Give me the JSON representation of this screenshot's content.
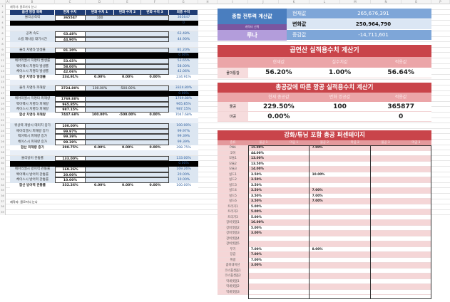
{
  "left_sheet": {
    "col_letters": [
      "A",
      "B",
      "C",
      "D",
      "E",
      "F",
      "G",
      "H"
    ],
    "title": "제작자: 클로저닉 눈나",
    "header": [
      "옵션 명칭 목록",
      "현재 수치",
      "변화 수치 1",
      "변화 수치 2",
      "변화 수치 3",
      "최종 수치"
    ],
    "rows": [
      {
        "n": 3,
        "t": "data",
        "c": [
          "물리공격력",
          "365547",
          "100",
          "",
          "",
          "365647"
        ]
      },
      {
        "n": 4,
        "t": "black",
        "c": [
          "",
          "",
          "",
          "",
          "",
          "0"
        ]
      },
      {
        "n": 5,
        "t": "blank"
      },
      {
        "n": 6,
        "t": "data",
        "c": [
          "공격 속도",
          "63.48%",
          "",
          "",
          "",
          "63.48%"
        ]
      },
      {
        "n": 7,
        "t": "data",
        "c": [
          "스킬 재사용 대기시간",
          "44.90%",
          "",
          "",
          "",
          "44.90%"
        ]
      },
      {
        "n": 8,
        "t": "blank"
      },
      {
        "n": 9,
        "t": "data",
        "c": [
          "물리 치명타 발생률",
          "81.20%",
          "",
          "",
          "",
          "81.20%"
        ]
      },
      {
        "n": 10,
        "t": "black",
        "c": [
          "",
          "",
          "",
          "",
          "",
          "0.00%"
        ]
      },
      {
        "n": 11,
        "t": "data",
        "c": [
          "에아리엘시 치명타 발생률",
          "53.65%",
          "",
          "",
          "",
          "53.65%"
        ]
      },
      {
        "n": 12,
        "t": "data",
        "c": [
          "백아펙시 치명타 발생률",
          "58.00%",
          "",
          "",
          "",
          "58.00%"
        ]
      },
      {
        "n": 13,
        "t": "data",
        "c": [
          "체이스시 치명타 발생률",
          "42.06%",
          "",
          "",
          "",
          "42.06%"
        ]
      },
      {
        "n": 14,
        "t": "sum",
        "c": [
          "합산 치명타 발생률",
          "234.91%",
          "0.00%",
          "0.00%",
          "0.00%",
          "234.91%"
        ]
      },
      {
        "n": 15,
        "t": "blank"
      },
      {
        "n": 16,
        "t": "data",
        "c": [
          "물리 치명타 피해량",
          "3724.80%",
          "100.00%",
          "-500.00%",
          "",
          "3324.80%"
        ]
      },
      {
        "n": 17,
        "t": "black",
        "c": [
          "",
          "",
          "",
          "",
          "",
          "0.00%"
        ]
      },
      {
        "n": 18,
        "t": "data",
        "c": [
          "에아리엘시 치명타 피해량",
          "1769.88%",
          "",
          "",
          "",
          "1769.88%"
        ]
      },
      {
        "n": 19,
        "t": "data",
        "c": [
          "백아펙시 치명타 피해량",
          "965.85%",
          "",
          "",
          "",
          "965.85%"
        ]
      },
      {
        "n": 20,
        "t": "data",
        "c": [
          "체이스시 치명타 피해량",
          "987.15%",
          "",
          "",
          "",
          "987.15%"
        ]
      },
      {
        "n": 21,
        "t": "sum",
        "c": [
          "합산 치명타 피해량",
          "7447.68%",
          "100.00%",
          "-500.00%",
          "0.00%",
          "7047.68%"
        ]
      },
      {
        "n": 22,
        "t": "blank"
      },
      {
        "n": 23,
        "t": "data",
        "c": [
          "위상력 개방시 데미지 증가",
          "100.00%",
          "",
          "",
          "",
          "100.00%"
        ]
      },
      {
        "n": 24,
        "t": "data",
        "c": [
          "에아리엘시 피해량 증가",
          "99.97%",
          "",
          "",
          "",
          "99.97%"
        ]
      },
      {
        "n": 25,
        "t": "data",
        "c": [
          "백아펙시 피해량 증가",
          "99.39%",
          "",
          "",
          "",
          "99.39%"
        ]
      },
      {
        "n": 26,
        "t": "data",
        "c": [
          "체이스시 피해량 증가",
          "99.39%",
          "",
          "",
          "",
          "99.39%"
        ]
      },
      {
        "n": 27,
        "t": "sum",
        "c": [
          "합산 피해량 증가",
          "398.75%",
          "0.00%",
          "0.00%",
          "0.00%",
          "398.75%"
        ]
      },
      {
        "n": 28,
        "t": "blank"
      },
      {
        "n": 29,
        "t": "data",
        "c": [
          "물리방어 관통률",
          "133.00%",
          "",
          "",
          "",
          "133.00%"
        ]
      },
      {
        "n": 30,
        "t": "black",
        "c": [
          "",
          "",
          "",
          "",
          "",
          "0.00%"
        ]
      },
      {
        "n": 31,
        "t": "data",
        "c": [
          "에아리엘시 방어력 관통률",
          "169.26%",
          "",
          "",
          "",
          "169.26%"
        ]
      },
      {
        "n": 32,
        "t": "data",
        "c": [
          "백아펙시 방어력 관통률",
          "20.00%",
          "",
          "",
          "",
          "20.00%"
        ]
      },
      {
        "n": 33,
        "t": "data",
        "c": [
          "체이스시 방어력 관통률",
          "10.00%",
          "",
          "",
          "",
          "10.00%"
        ]
      },
      {
        "n": 34,
        "t": "sum",
        "c": [
          "합산 방어력 관통률",
          "332.26%",
          "0.00%",
          "0.00%",
          "0.00%",
          "100.00%"
        ]
      },
      {
        "n": 35,
        "t": "blank"
      },
      {
        "n": 36,
        "t": "blank"
      },
      {
        "n": 37,
        "t": "note",
        "c": [
          "제작자: 클로저닉 눈나"
        ]
      },
      {
        "n": 38,
        "t": "blank"
      },
      {
        "n": 39,
        "t": "blank"
      }
    ]
  },
  "right_col_letters": [
    "I",
    "J",
    "K",
    "L",
    "M",
    "N",
    "O",
    "P"
  ],
  "power": {
    "title": "종합 전투력 계산값",
    "char_label": "캐릭터 선택",
    "char_value": "루나",
    "rows": [
      {
        "label": "현재값",
        "value": "265,676,391"
      },
      {
        "label": "변화값",
        "value": "250,964,790"
      },
      {
        "label": "증감값",
        "value": "-14,711,601"
      }
    ]
  },
  "calc1": {
    "title": "곱연산 실적용수치 계산기",
    "headers": [
      "현재값",
      "실수치값",
      "적용값"
    ],
    "row_label": "물마통합",
    "values": [
      "56.20%",
      "1.00%",
      "56.64%"
    ]
  },
  "calc2": {
    "title": "총공값에 따른 깡공 실적용수치 계산기",
    "headers": [
      "현재 총공값",
      "변화 깡공값",
      "적용값"
    ],
    "rows": [
      {
        "label": "물공",
        "values": [
          "229.50%",
          "100",
          "365877"
        ]
      },
      {
        "label": "마공",
        "values": [
          "0.00%",
          "",
          "0"
        ]
      }
    ]
  },
  "calc3": {
    "title": "강화/튜닝 포함 총공 퍼센테이지",
    "headers": [
      "종류",
      "물공 1",
      "마공 1",
      "물공 2",
      "마공 2",
      "물공 3",
      "마공 3"
    ],
    "rows": [
      [
        "PNA",
        "15.00%",
        "",
        "7.00%",
        "",
        "",
        ""
      ],
      [
        "코어",
        "44.00%",
        "",
        "",
        "",
        "",
        ""
      ],
      [
        "모듈1",
        "13.00%",
        "",
        "",
        "",
        "",
        ""
      ],
      [
        "모듈2",
        "13.50%",
        "",
        "",
        "",
        "",
        ""
      ],
      [
        "모듈3",
        "14.00%",
        "",
        "",
        "",
        "",
        ""
      ],
      [
        "실드1",
        "3.50%",
        "",
        "10.00%",
        "",
        "",
        ""
      ],
      [
        "실드2",
        "3.50%",
        "",
        "",
        "",
        "",
        ""
      ],
      [
        "실드3",
        "3.50%",
        "",
        "",
        "",
        "",
        ""
      ],
      [
        "실드4",
        "3.50%",
        "",
        "7.00%",
        "",
        "",
        ""
      ],
      [
        "실드5",
        "3.50%",
        "",
        "7.00%",
        "",
        "",
        ""
      ],
      [
        "실드6",
        "3.50%",
        "",
        "7.00%",
        "",
        "",
        ""
      ],
      [
        "트리거1",
        "5.00%",
        "",
        "",
        "",
        "",
        ""
      ],
      [
        "트리거2",
        "5.00%",
        "",
        "",
        "",
        "",
        ""
      ],
      [
        "트리거3",
        "5.00%",
        "",
        "",
        "",
        "",
        ""
      ],
      [
        "장비셋옵1",
        "16.00%",
        "",
        "",
        "",
        "",
        ""
      ],
      [
        "장비셋옵2",
        "5.00%",
        "",
        "",
        "",
        "",
        ""
      ],
      [
        "장비셋옵3",
        "3.00%",
        "",
        "",
        "",
        "",
        ""
      ],
      [
        "장비셋옵4",
        "",
        "",
        "",
        "",
        "",
        ""
      ],
      [
        "장비셋옵5",
        "",
        "",
        "",
        "",
        "",
        ""
      ],
      [
        "무기",
        "7.00%",
        "",
        "8.00%",
        "",
        "",
        ""
      ],
      [
        "장갑",
        "7.00%",
        "",
        "",
        "",
        "",
        ""
      ],
      [
        "위광",
        "7.00%",
        "",
        "",
        "",
        "",
        ""
      ],
      [
        "콤비네이션",
        "3.00%",
        "",
        "",
        "",
        "",
        ""
      ],
      [
        "코스튬셋옵1",
        "",
        "",
        "",
        "",
        "",
        ""
      ],
      [
        "코스튬셋옵2",
        "",
        "",
        "",
        "",
        "",
        ""
      ],
      [
        "악세셋옵1",
        "",
        "",
        "",
        "",
        "",
        ""
      ],
      [
        "악세셋옵2",
        "",
        "",
        "",
        "",
        "",
        ""
      ],
      [
        "악세셋옵3",
        "",
        "",
        "",
        "",
        "",
        ""
      ]
    ]
  },
  "colors": {
    "navy": "#1f3c74",
    "light_blue": "#dce6f1",
    "red": "#c9444a",
    "pink": "#eba5a8",
    "power_blue": "#4a7ebf",
    "purple": "#7a56a0",
    "lavender": "#b39ddb"
  }
}
